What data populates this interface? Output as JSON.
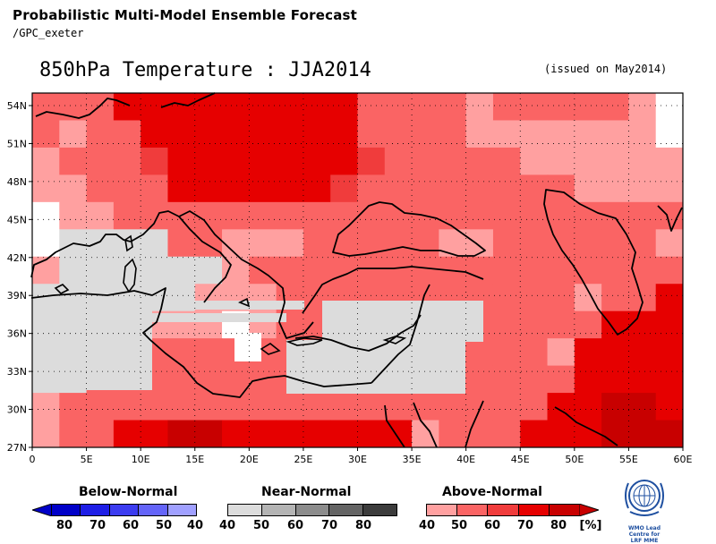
{
  "header": {
    "title": "Probabilistic Multi-Model Ensemble Forecast",
    "subtitle": "/GPC_exeter"
  },
  "map": {
    "title": "850hPa Temperature : JJA2014",
    "issued": "(issued on May2014)",
    "lat_labels": [
      "54N",
      "51N",
      "48N",
      "45N",
      "42N",
      "39N",
      "36N",
      "33N",
      "30N",
      "27N"
    ],
    "lon_labels": [
      "0",
      "5E",
      "10E",
      "15E",
      "20E",
      "25E",
      "30E",
      "35E",
      "40E",
      "45E",
      "50E",
      "55E",
      "60E"
    ]
  },
  "legend": {
    "below": {
      "title": "Below-Normal",
      "labels": [
        "80",
        "70",
        "60",
        "50",
        "40"
      ],
      "colors": [
        "#0000c8",
        "#1e1ee6",
        "#3c3cf0",
        "#6464f8",
        "#a0a0ff"
      ]
    },
    "near": {
      "title": "Near-Normal",
      "labels": [
        "40",
        "50",
        "60",
        "70",
        "80"
      ],
      "colors": [
        "#dcdcdc",
        "#b4b4b4",
        "#8c8c8c",
        "#646464",
        "#3c3c3c"
      ]
    },
    "above": {
      "title": "Above-Normal",
      "labels": [
        "40",
        "50",
        "60",
        "70",
        "80",
        "[%]"
      ],
      "colors": [
        "#ffa0a0",
        "#fa6464",
        "#f03c3c",
        "#e60000",
        "#c80000"
      ]
    }
  },
  "logo": {
    "caption_line1": "WMO Lead Centre for",
    "caption_line2": "LRF MME"
  }
}
